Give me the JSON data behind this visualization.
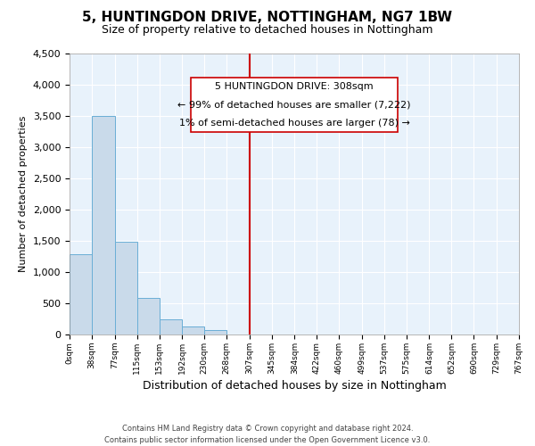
{
  "title": "5, HUNTINGDON DRIVE, NOTTINGHAM, NG7 1BW",
  "subtitle": "Size of property relative to detached houses in Nottingham",
  "xlabel": "Distribution of detached houses by size in Nottingham",
  "ylabel": "Number of detached properties",
  "bin_edges": [
    0,
    38,
    77,
    115,
    153,
    192,
    230,
    268,
    307,
    345,
    384,
    422,
    460,
    499,
    537,
    575,
    614,
    652,
    690,
    729,
    767
  ],
  "bin_counts": [
    1280,
    3500,
    1480,
    580,
    245,
    130,
    70,
    0,
    0,
    0,
    0,
    0,
    0,
    0,
    0,
    0,
    0,
    0,
    0,
    0
  ],
  "bar_color": "#c9daea",
  "bar_edge_color": "#6aaed6",
  "vline_x": 307,
  "vline_color": "#cc0000",
  "ann_line1": "5 HUNTINGDON DRIVE: 308sqm",
  "ann_line2": "← 99% of detached houses are smaller (7,222)",
  "ann_line3": "1% of semi-detached houses are larger (78) →",
  "ylim": [
    0,
    4500
  ],
  "yticks": [
    0,
    500,
    1000,
    1500,
    2000,
    2500,
    3000,
    3500,
    4000,
    4500
  ],
  "tick_labels": [
    "0sqm",
    "38sqm",
    "77sqm",
    "115sqm",
    "153sqm",
    "192sqm",
    "230sqm",
    "268sqm",
    "307sqm",
    "345sqm",
    "384sqm",
    "422sqm",
    "460sqm",
    "499sqm",
    "537sqm",
    "575sqm",
    "614sqm",
    "652sqm",
    "690sqm",
    "729sqm",
    "767sqm"
  ],
  "footer_text": "Contains HM Land Registry data © Crown copyright and database right 2024.\nContains public sector information licensed under the Open Government Licence v3.0.",
  "bg_color": "#e8f2fb",
  "title_fontsize": 11,
  "subtitle_fontsize": 9,
  "xlabel_fontsize": 9,
  "ylabel_fontsize": 8,
  "annotation_fontsize": 8
}
